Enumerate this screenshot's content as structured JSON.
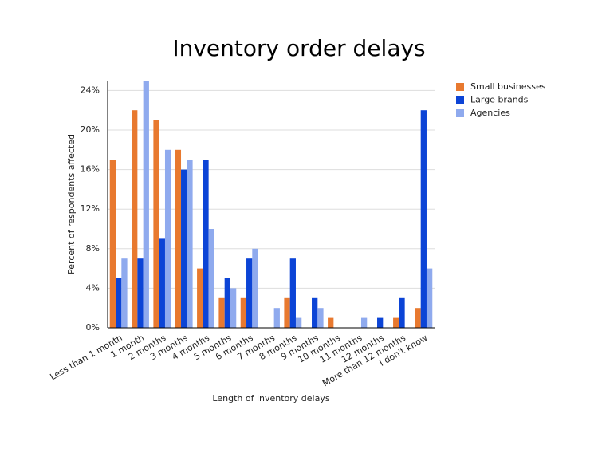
{
  "chart_data": {
    "type": "bar",
    "title": "Inventory order delays",
    "x_label": "Length of inventory delays",
    "y_label": "Percent of respondents affected",
    "categories": [
      "Less than 1 month",
      "1 month",
      "2 months",
      "3 months",
      "4 months",
      "5 months",
      "6 months",
      "7 months",
      "8 months",
      "9 months",
      "10 months",
      "11 months",
      "12 months",
      "More than 12 months",
      "I don't know"
    ],
    "series": [
      {
        "name": "Small businesses",
        "color": "#e8792f",
        "values": [
          17,
          22,
          21,
          18,
          6,
          3,
          3,
          0,
          3,
          0,
          1,
          0,
          0,
          1,
          2
        ]
      },
      {
        "name": "Large brands",
        "color": "#0c44d6",
        "values": [
          5,
          7,
          9,
          16,
          17,
          5,
          7,
          0,
          7,
          3,
          0,
          0,
          1,
          3,
          22
        ]
      },
      {
        "name": "Agencies",
        "color": "#8faaee",
        "values": [
          7,
          25,
          18,
          17,
          10,
          4,
          8,
          2,
          1,
          2,
          0,
          1,
          0,
          0,
          6
        ]
      }
    ],
    "ylim": [
      0,
      25
    ],
    "yticks": [
      {
        "value": 0,
        "label": "0%"
      },
      {
        "value": 4,
        "label": "4%"
      },
      {
        "value": 8,
        "label": "8%"
      },
      {
        "value": 12,
        "label": "12%"
      },
      {
        "value": 16,
        "label": "16%"
      },
      {
        "value": 20,
        "label": "20%"
      },
      {
        "value": 24,
        "label": "24%"
      }
    ],
    "grid": true,
    "legend": "right"
  }
}
